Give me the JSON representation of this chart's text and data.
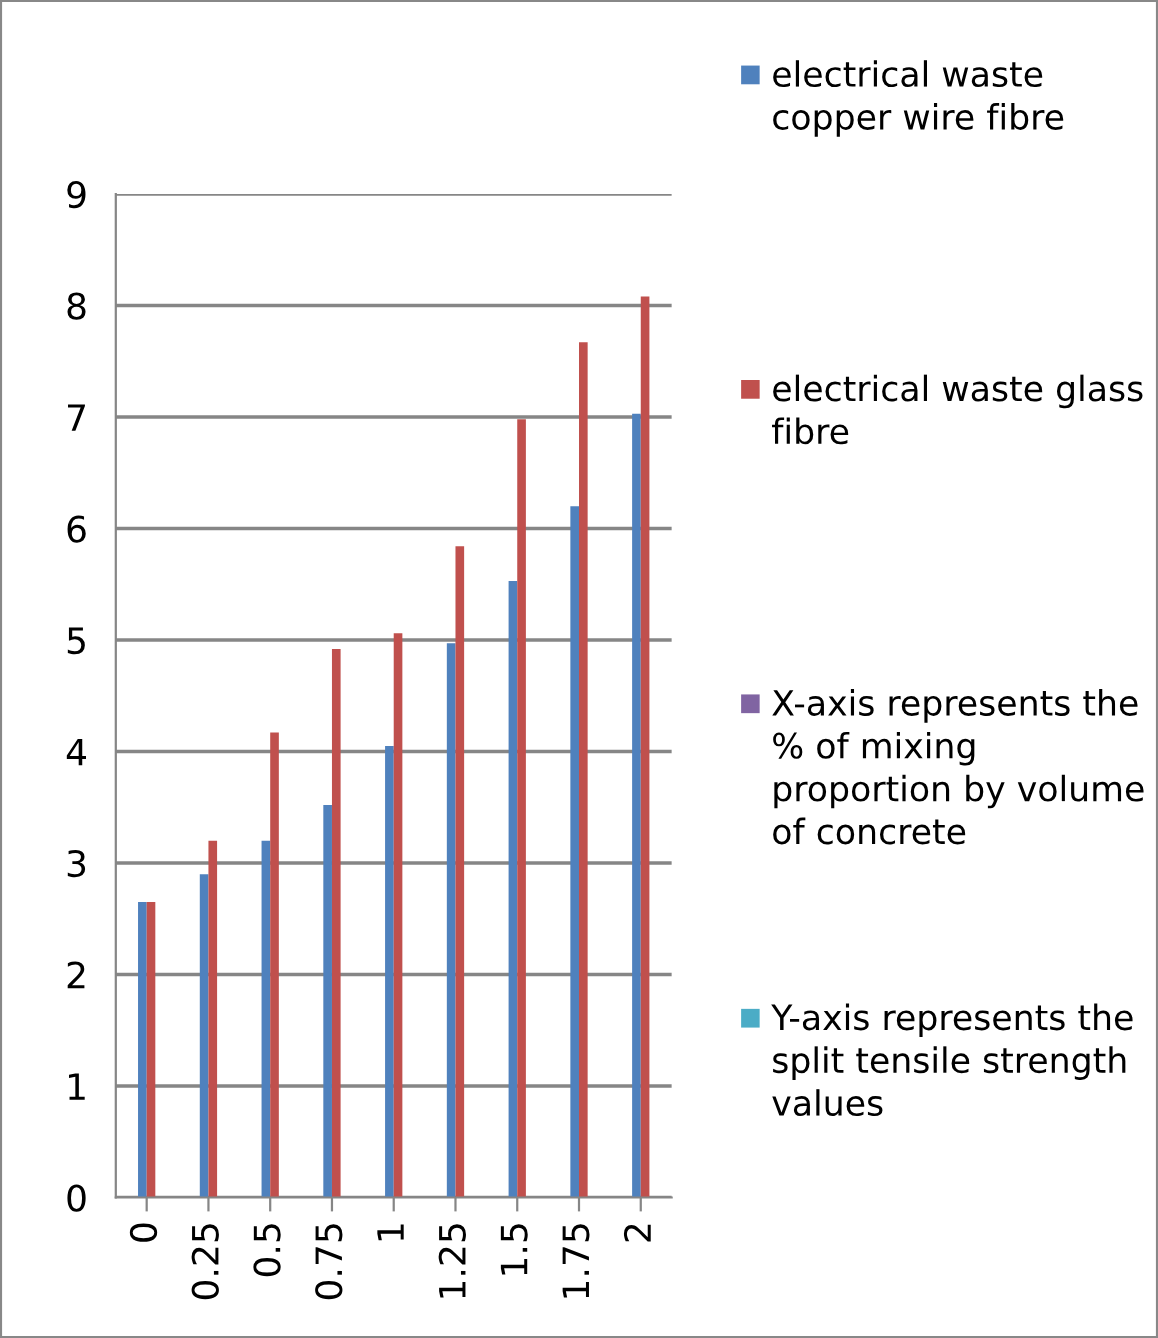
{
  "chart_data": {
    "type": "bar",
    "categories": [
      "0",
      "0.25",
      "0.5",
      "0.75",
      "1",
      "1.25",
      "1.5",
      "1.75",
      "2"
    ],
    "series": [
      {
        "name": "electrical waste copper wire fibre",
        "color": "#4f81bd",
        "values": [
          2.65,
          2.9,
          3.2,
          3.52,
          4.05,
          4.97,
          5.53,
          6.2,
          7.03
        ]
      },
      {
        "name": "electrical waste glass fibre",
        "color": "#c0504d",
        "values": [
          2.65,
          3.2,
          4.17,
          4.92,
          5.06,
          5.84,
          6.98,
          7.67,
          8.08
        ]
      },
      {
        "name": "X-axis represents the % of mixing proportion by volume of concrete",
        "color": "#8064a2",
        "values": [
          null,
          null,
          null,
          null,
          null,
          null,
          null,
          null,
          null
        ]
      },
      {
        "name": "Y-axis represents the split tensile strength values",
        "color": "#4bacc6",
        "values": [
          null,
          null,
          null,
          null,
          null,
          null,
          null,
          null,
          null
        ]
      }
    ],
    "ylim": [
      0,
      9
    ],
    "yticks": [
      0,
      1,
      2,
      3,
      4,
      5,
      6,
      7,
      8,
      9
    ],
    "grid": "y",
    "legend": "right"
  }
}
